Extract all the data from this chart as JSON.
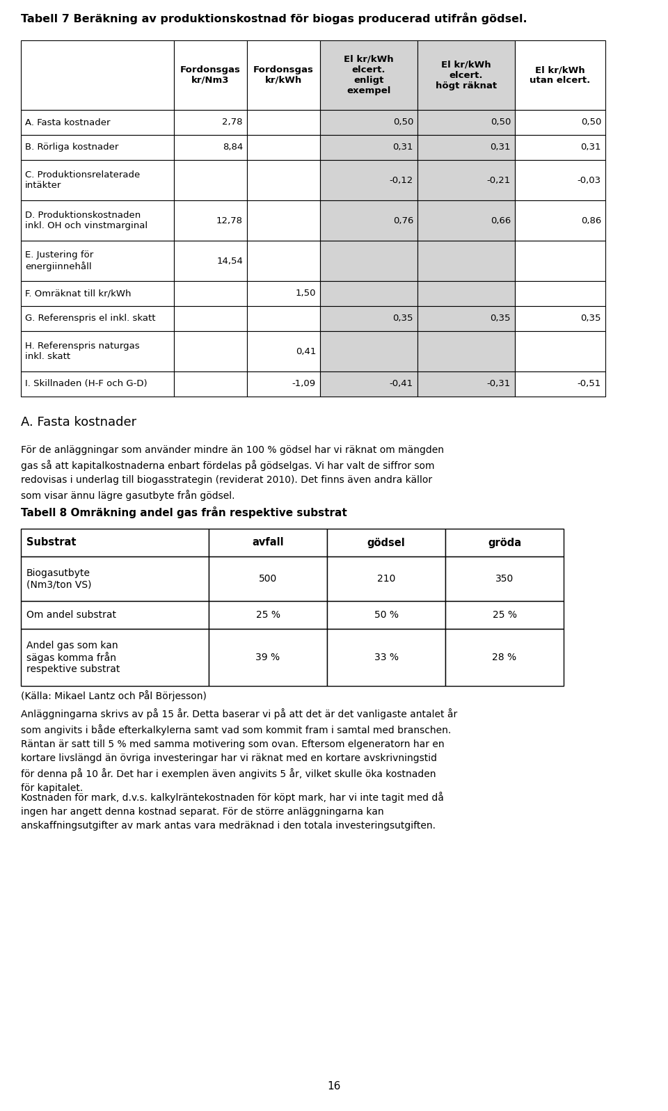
{
  "page_title": "Tabell 7 Beräkning av produktionskostnad för biogas producerad utifrån gödsel.",
  "table1_headers": [
    "",
    "Fordonsgas\nkr/Nm3",
    "Fordonsgas\nkr/kWh",
    "El kr/kWh\nelcert.\nenligt\nexempel",
    "El kr/kWh\nelcert.\nhögt räknat",
    "El kr/kWh\nutan elcert."
  ],
  "table1_rows": [
    [
      "A. Fasta kostnader",
      "2,78",
      "",
      "0,50",
      "0,50",
      "0,50"
    ],
    [
      "B. Rörliga kostnader",
      "8,84",
      "",
      "0,31",
      "0,31",
      "0,31"
    ],
    [
      "C. Produktionsrelaterade\nintäkter",
      "",
      "",
      "-0,12",
      "-0,21",
      "-0,03"
    ],
    [
      "D. Produktionskostnaden\ninkl. OH och vinstmarginal",
      "12,78",
      "",
      "0,76",
      "0,66",
      "0,86"
    ],
    [
      "E. Justering för\nenergiinnehåll",
      "14,54",
      "",
      "",
      "",
      ""
    ],
    [
      "F. Omräknat till kr/kWh",
      "",
      "1,50",
      "",
      "",
      ""
    ],
    [
      "G. Referenspris el inkl. skatt",
      "",
      "",
      "0,35",
      "0,35",
      "0,35"
    ],
    [
      "H. Referenspris naturgas\ninkl. skatt",
      "",
      "0,41",
      "",
      "",
      ""
    ],
    [
      "I. Skillnaden (H-F och G-D)",
      "",
      "-1,09",
      "-0,41",
      "-0,31",
      "-0,51"
    ]
  ],
  "shaded_cols": [
    3,
    4
  ],
  "section_title": "A. Fasta kostnader",
  "section_text": "För de anläggningar som använder mindre än 100 % gödsel har vi räknat om mängden\ngas så att kapitalkostnaderna enbart fördelas på gödselgas. Vi har valt de siffror som\nredovisas i underlag till biogasstrategin (reviderat 2010). Det finns även andra källor\nsom visar ännu lägre gasutbyte från gödsel.",
  "table2_title": "Tabell 8 Omräkning andel gas från respektive substrat",
  "table2_headers": [
    "Substrat",
    "avfall",
    "gödsel",
    "gröda"
  ],
  "table2_rows": [
    [
      "Biogasutbyte\n(Nm3/ton VS)",
      "500",
      "210",
      "350"
    ],
    [
      "Om andel substrat",
      "25 %",
      "50 %",
      "25 %"
    ],
    [
      "Andel gas som kan\nsägas komma från\nrespektive substrat",
      "39 %",
      "33 %",
      "28 %"
    ]
  ],
  "table2_source": "(Källa: Mikael Lantz och Pål Börjesson)",
  "body_text1": "Anläggningarna skrivs av på 15 år. Detta baserar vi på att det är det vanligaste antalet år\nsom angivits i både efterkalkylerna samt vad som kommit fram i samtal med branschen.\nRäntan är satt till 5 % med samma motivering som ovan. Eftersom elgeneratorn har en\nkortare livslängd än övriga investeringar har vi räknat med en kortare avskrivningstid\nför denna på 10 år. Det har i exemplen även angivits 5 år, vilket skulle öka kostnaden\nför kapitalet.",
  "body_text2": "Kostnaden för mark, d.v.s. kalkylräntekostnaden för köpt mark, har vi inte tagit med då\ningen har angett denna kostnad separat. För de större anläggningarna kan\nanskaffningsutgifter av mark antas vara medräknad i den totala investeringsutgiften.",
  "page_number": "16",
  "bg_color": "#ffffff",
  "border_color": "#000000",
  "shaded_bg": "#d3d3d3",
  "white_bg": "#ffffff"
}
